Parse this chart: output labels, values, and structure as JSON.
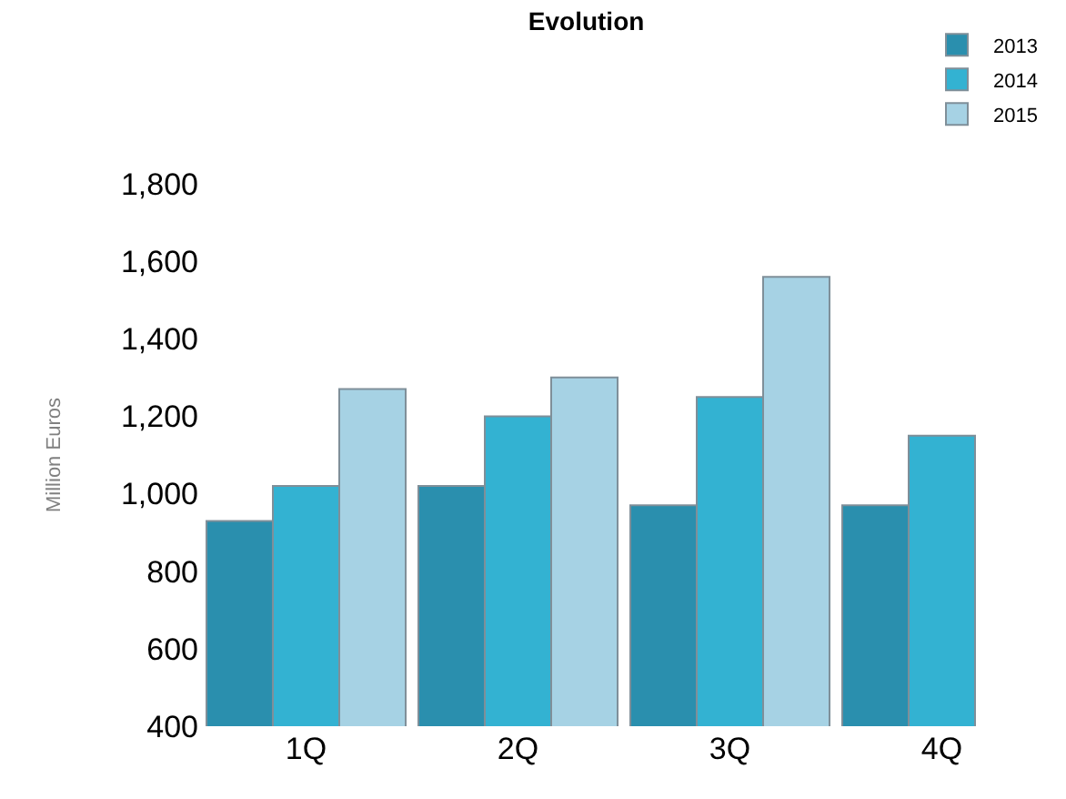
{
  "chart_data": {
    "type": "bar",
    "title": "Evolution",
    "ylabel": "Million Euros",
    "categories": [
      "1Q",
      "2Q",
      "3Q",
      "4Q"
    ],
    "series": [
      {
        "name": "2013",
        "color": "#2a8fae",
        "values": [
          930,
          1020,
          970,
          970
        ]
      },
      {
        "name": "2014",
        "color": "#33b2d2",
        "values": [
          1020,
          1200,
          1250,
          1150
        ]
      },
      {
        "name": "2015",
        "color": "#a6d2e4",
        "values": [
          1270,
          1300,
          1560,
          null
        ]
      }
    ],
    "ylim": [
      400,
      1800
    ],
    "yticks": [
      {
        "value": 400,
        "label": "400"
      },
      {
        "value": 600,
        "label": "600"
      },
      {
        "value": 800,
        "label": "800"
      },
      {
        "value": 1000,
        "label": "1,000"
      },
      {
        "value": 1200,
        "label": "1,200"
      },
      {
        "value": 1400,
        "label": "1,400"
      },
      {
        "value": 1600,
        "label": "1,600"
      },
      {
        "value": 1800,
        "label": "1,800"
      }
    ],
    "grid": false,
    "legend": "top right"
  }
}
